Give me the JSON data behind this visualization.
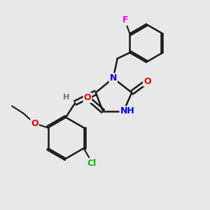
{
  "background_color": "#e8e8e8",
  "bond_color": "#1a1a1a",
  "atom_colors": {
    "N": "#0000ee",
    "O": "#ee0000",
    "Cl": "#00bb00",
    "F": "#ee00ee",
    "H": "#707070",
    "C": "#1a1a1a"
  },
  "font_size_atom": 8,
  "figsize": [
    3.0,
    3.0
  ],
  "dpi": 100
}
